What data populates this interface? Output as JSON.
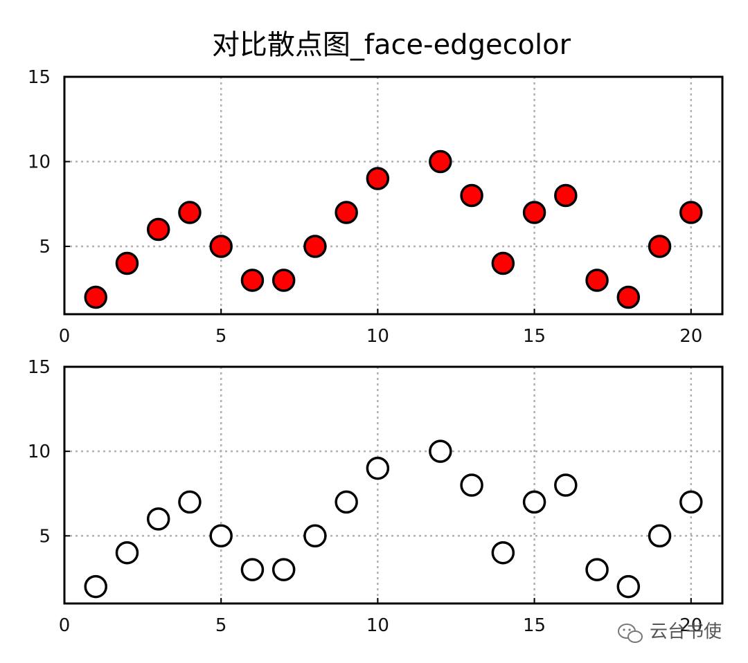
{
  "title": "对比散点图_face-edgecolor",
  "chart_data": [
    {
      "type": "scatter",
      "x": [
        1,
        2,
        3,
        4,
        5,
        6,
        7,
        8,
        9,
        10,
        12,
        13,
        14,
        15,
        16,
        17,
        18,
        19,
        20
      ],
      "y": [
        2,
        4,
        6,
        7,
        5,
        3,
        3,
        5,
        7,
        9,
        10,
        8,
        4,
        7,
        8,
        3,
        2,
        5,
        7
      ],
      "xlim": [
        0,
        21
      ],
      "ylim": [
        1,
        15
      ],
      "xticks": [
        "0",
        "5",
        "10",
        "15",
        "20"
      ],
      "yticks": [
        "5",
        "10",
        "15"
      ],
      "grid": true,
      "marker_facecolor": "#ff0000",
      "marker_edgecolor": "#000000"
    },
    {
      "type": "scatter",
      "x": [
        1,
        2,
        3,
        4,
        5,
        6,
        7,
        8,
        9,
        10,
        12,
        13,
        14,
        15,
        16,
        17,
        18,
        19,
        20
      ],
      "y": [
        2,
        4,
        6,
        7,
        5,
        3,
        3,
        5,
        7,
        9,
        10,
        8,
        4,
        7,
        8,
        3,
        2,
        5,
        7
      ],
      "xlim": [
        0,
        21
      ],
      "ylim": [
        1,
        15
      ],
      "xticks": [
        "0",
        "5",
        "10",
        "15",
        "20"
      ],
      "yticks": [
        "5",
        "10",
        "15"
      ],
      "grid": true,
      "marker_facecolor": "none",
      "marker_edgecolor": "#000000"
    }
  ],
  "watermark": {
    "text": "云台书使",
    "icon": "wechat-icon"
  }
}
